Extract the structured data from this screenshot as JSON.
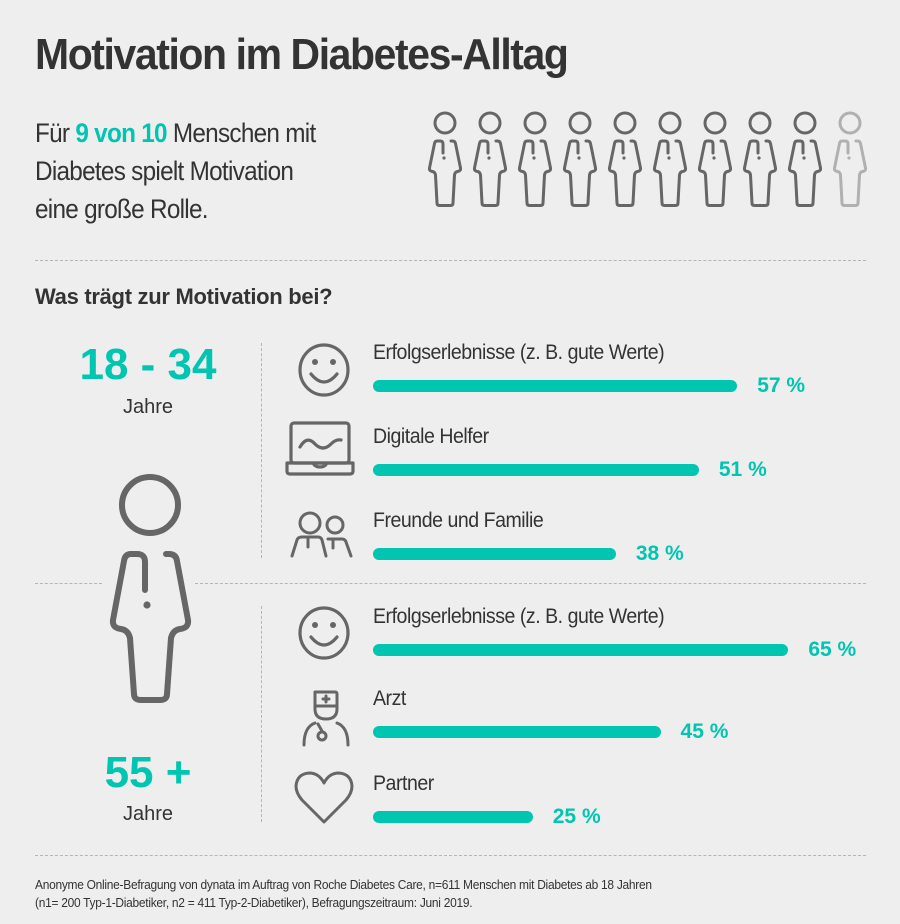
{
  "title": "Motivation im Diabetes-Alltag",
  "intro": {
    "prefix": "Für ",
    "highlight": "9 von 10",
    "suffix": " Menschen mit",
    "line2": "Diabetes spielt Motivation",
    "line3": "eine große Rolle."
  },
  "people_ratio": {
    "highlighted": 9,
    "total": 10
  },
  "colors": {
    "accent": "#00c5b1",
    "text": "#333333",
    "icon": "#666666",
    "icon_faded": "#b0b0b0",
    "background": "#eeeeee"
  },
  "section_title": "Was trägt zur Motivation bei?",
  "chart_data": [
    {
      "type": "bar",
      "group": "18 - 34",
      "group_unit": "Jahre",
      "categories": [
        "Erfolgserlebnisse (z. B. gute Werte)",
        "Digitale Helfer",
        "Freunde und Familie"
      ],
      "icons": [
        "smiley-icon",
        "laptop-icon",
        "group-icon"
      ],
      "values": [
        57,
        51,
        38
      ],
      "labels": [
        "57 %",
        "51 %",
        "38 %"
      ],
      "unit": "%"
    },
    {
      "type": "bar",
      "group": "55 +",
      "group_unit": "Jahre",
      "categories": [
        "Erfolgserlebnisse (z. B. gute Werte)",
        "Arzt",
        "Partner"
      ],
      "icons": [
        "smiley-icon",
        "doctor-icon",
        "heart-icon"
      ],
      "values": [
        65,
        45,
        25
      ],
      "labels": [
        "65 %",
        "45 %",
        "25 %"
      ],
      "unit": "%"
    }
  ],
  "footer": {
    "line1": "Anonyme Online-Befragung von dynata im Auftrag von Roche Diabetes Care, n=611 Menschen mit Diabetes ab 18 Jahren",
    "line2": "(n1= 200 Typ-1-Diabetiker, n2 = 411 Typ-2-Diabetiker), Befragungszeitraum: Juni 2019."
  }
}
